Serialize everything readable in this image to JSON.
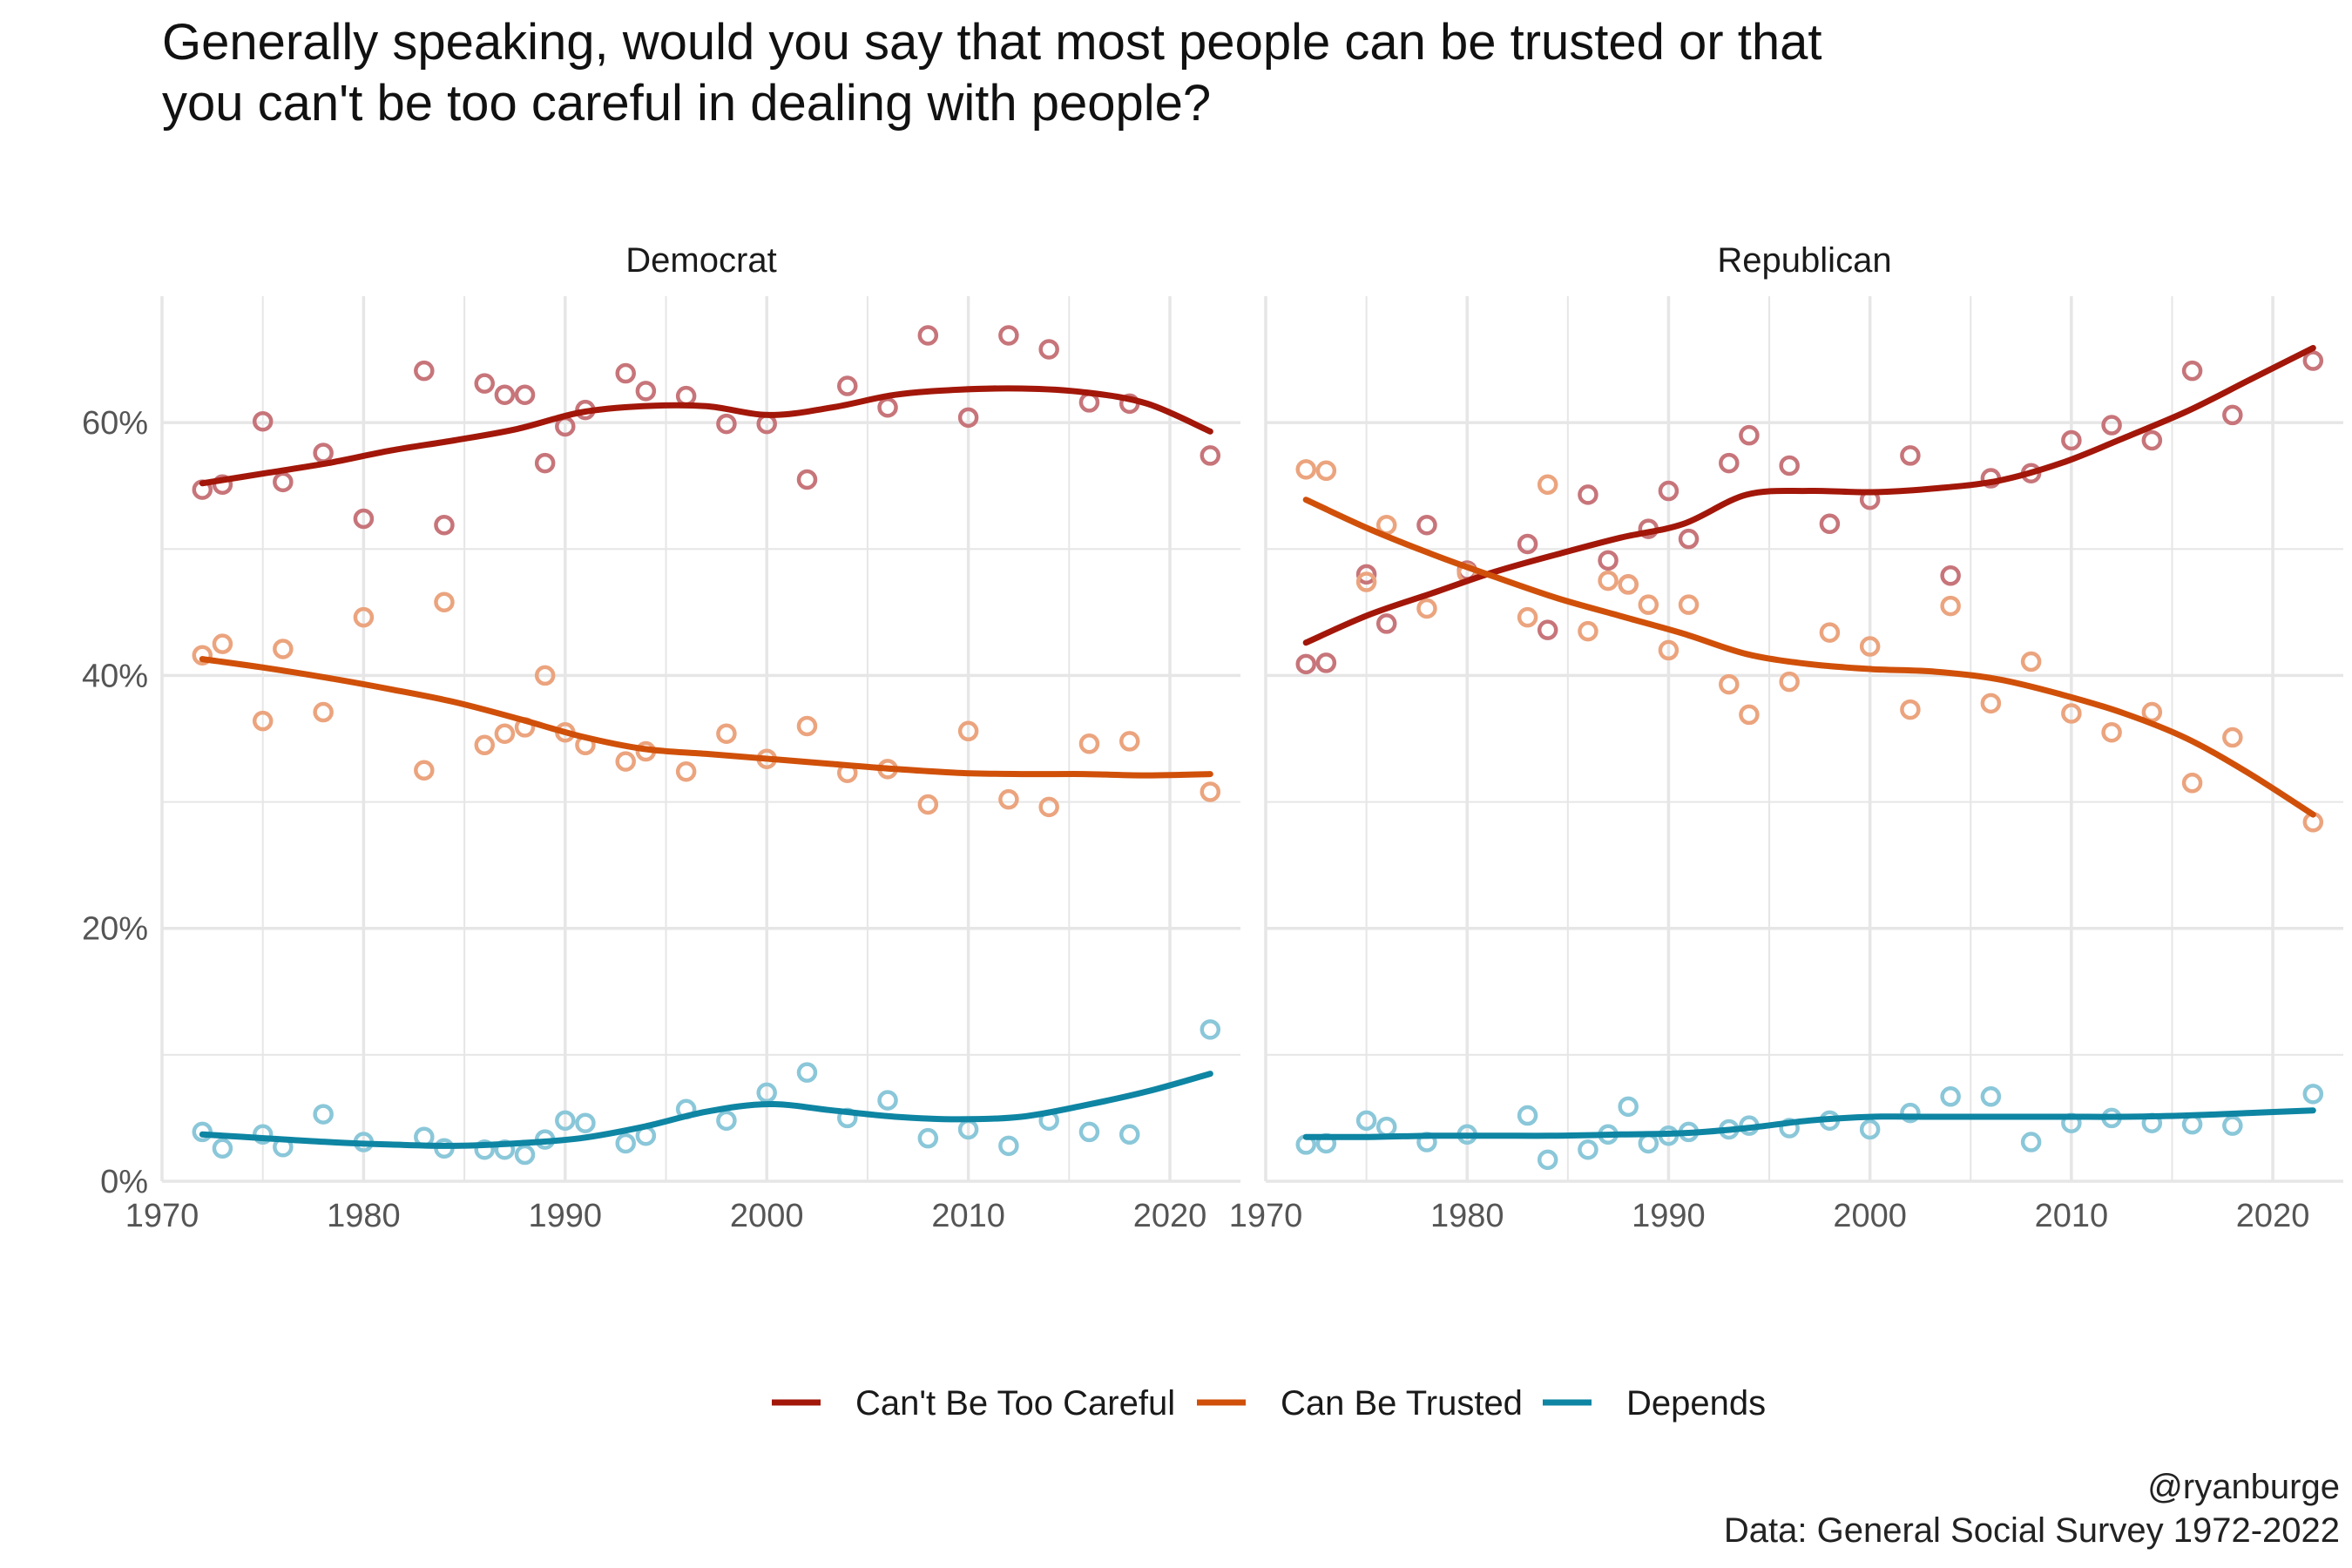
{
  "title_line1": "Generally speaking, would you say that most people can be trusted or that",
  "title_line2": "you can't be too careful in dealing with people?",
  "caption_handle": "@ryanburge",
  "caption_source": "Data: General Social Survey 1972-2022",
  "colors": {
    "cant_be_too_careful": "#a21709",
    "can_be_trusted": "#d0500a",
    "depends": "#0e85a3",
    "cant_be_too_careful_point": "#c7757a",
    "can_be_trusted_point": "#eba47e",
    "depends_point": "#8ac7d9",
    "grid": "#e6e6e6",
    "axis_text": "#555555"
  },
  "chart_data": {
    "type": "scatter",
    "title": "Generally speaking, would you say that most people can be trusted or that you can't be too careful in dealing with people?",
    "xlabel": "",
    "ylabel": "",
    "xlim": [
      1970,
      2023.5
    ],
    "ylim": [
      0,
      70
    ],
    "x_ticks": [
      1970,
      1980,
      1990,
      2000,
      2010,
      2020
    ],
    "x_tick_labels": [
      "1970",
      "1980",
      "1990",
      "2000",
      "2010",
      "2020"
    ],
    "y_ticks": [
      0,
      20,
      40,
      60
    ],
    "y_tick_labels": [
      "0%",
      "20%",
      "40%",
      "60%"
    ],
    "legend": [
      "Can't Be Too Careful",
      "Can Be Trusted",
      "Depends"
    ],
    "legend_position": "bottom",
    "smoothed_lines": true,
    "panels": [
      {
        "name": "Democrat",
        "series": [
          {
            "name": "Can't Be Too Careful",
            "x": [
              1972,
              1973,
              1975,
              1976,
              1978,
              1980,
              1983,
              1984,
              1986,
              1987,
              1988,
              1989,
              1990,
              1991,
              1993,
              1994,
              1996,
              1998,
              2000,
              2002,
              2004,
              2006,
              2008,
              2010,
              2012,
              2014,
              2016,
              2018,
              2022
            ],
            "y": [
              54.7,
              55.1,
              60.1,
              55.3,
              57.6,
              52.4,
              64.1,
              51.9,
              63.1,
              62.2,
              62.2,
              56.8,
              59.7,
              61.0,
              63.9,
              62.5,
              62.1,
              59.9,
              59.9,
              55.5,
              62.9,
              61.2,
              66.9,
              60.4,
              66.9,
              65.8,
              61.6,
              61.5,
              57.4
            ],
            "trend": [
              55.2,
              56.0,
              56.8,
              57.8,
              58.6,
              59.5,
              60.8,
              61.3,
              61.3,
              60.6,
              61.2,
              62.2,
              62.6,
              62.7,
              62.4,
              61.5,
              59.3
            ]
          },
          {
            "name": "Can Be Trusted",
            "x": [
              1972,
              1973,
              1975,
              1976,
              1978,
              1980,
              1983,
              1984,
              1986,
              1987,
              1988,
              1989,
              1990,
              1991,
              1993,
              1994,
              1996,
              1998,
              2000,
              2002,
              2004,
              2006,
              2008,
              2010,
              2012,
              2014,
              2016,
              2018,
              2022
            ],
            "y": [
              41.6,
              42.5,
              36.4,
              42.1,
              37.1,
              44.6,
              32.5,
              45.8,
              34.5,
              35.4,
              35.9,
              40.0,
              35.5,
              34.5,
              33.2,
              34.0,
              32.4,
              35.4,
              33.4,
              36.0,
              32.3,
              32.6,
              29.8,
              35.6,
              30.2,
              29.6,
              34.6,
              34.8,
              30.8
            ],
            "trend": [
              41.3,
              40.6,
              39.8,
              38.9,
              37.9,
              36.6,
              35.2,
              34.2,
              33.8,
              33.4,
              33.0,
              32.6,
              32.3,
              32.2,
              32.2,
              32.1,
              32.2
            ]
          },
          {
            "name": "Depends",
            "x": [
              1972,
              1973,
              1975,
              1976,
              1978,
              1980,
              1983,
              1984,
              1986,
              1987,
              1988,
              1989,
              1990,
              1991,
              1993,
              1994,
              1996,
              1998,
              2000,
              2002,
              2004,
              2006,
              2008,
              2010,
              2012,
              2014,
              2016,
              2018,
              2022
            ],
            "y": [
              3.9,
              2.6,
              3.7,
              2.7,
              5.3,
              3.1,
              3.5,
              2.6,
              2.5,
              2.5,
              2.1,
              3.3,
              4.8,
              4.6,
              3.0,
              3.6,
              5.7,
              4.8,
              7.0,
              8.6,
              5.0,
              6.4,
              3.4,
              4.1,
              2.8,
              4.8,
              3.9,
              3.7,
              12.0
            ],
            "trend": [
              3.7,
              3.4,
              3.1,
              2.9,
              2.8,
              3.0,
              3.4,
              4.3,
              5.5,
              6.1,
              5.6,
              5.1,
              4.9,
              5.1,
              6.0,
              7.1,
              8.5
            ]
          }
        ]
      },
      {
        "name": "Republican",
        "series": [
          {
            "name": "Can't Be Too Careful",
            "x": [
              1972,
              1973,
              1975,
              1976,
              1978,
              1980,
              1983,
              1984,
              1986,
              1987,
              1988,
              1989,
              1990,
              1991,
              1993,
              1994,
              1996,
              1998,
              2000,
              2002,
              2004,
              2006,
              2008,
              2010,
              2012,
              2014,
              2016,
              2018,
              2022
            ],
            "y": [
              40.9,
              41.0,
              48.0,
              44.1,
              51.9,
              48.3,
              50.4,
              43.6,
              54.3,
              49.1,
              47.2,
              51.6,
              54.6,
              50.8,
              56.8,
              59.0,
              56.6,
              52.0,
              53.9,
              57.4,
              47.9,
              55.6,
              56.0,
              58.6,
              59.8,
              58.6,
              64.1,
              60.6,
              64.9
            ],
            "trend": [
              42.6,
              44.8,
              46.5,
              48.2,
              49.6,
              50.9,
              52.0,
              54.3,
              54.6,
              54.5,
              54.8,
              55.4,
              56.8,
              58.8,
              60.9,
              63.4,
              65.9
            ]
          },
          {
            "name": "Can Be Trusted",
            "x": [
              1972,
              1973,
              1975,
              1976,
              1978,
              1980,
              1983,
              1984,
              1986,
              1987,
              1988,
              1989,
              1990,
              1991,
              1993,
              1994,
              1996,
              1998,
              2000,
              2002,
              2004,
              2006,
              2008,
              2010,
              2012,
              2014,
              2016,
              2018,
              2022
            ],
            "y": [
              56.3,
              56.2,
              47.4,
              51.9,
              45.3,
              48.1,
              44.6,
              55.1,
              43.5,
              47.5,
              47.2,
              45.6,
              42.0,
              45.6,
              39.3,
              36.9,
              39.5,
              43.4,
              42.3,
              37.3,
              45.5,
              37.8,
              41.1,
              37.0,
              35.5,
              37.1,
              31.5,
              35.1,
              28.4
            ],
            "trend": [
              53.9,
              51.6,
              49.6,
              47.8,
              46.1,
              44.7,
              43.3,
              41.7,
              40.9,
              40.5,
              40.3,
              39.7,
              38.5,
              37.0,
              35.0,
              32.2,
              29.0
            ]
          },
          {
            "name": "Depends",
            "x": [
              1972,
              1973,
              1975,
              1976,
              1978,
              1980,
              1983,
              1984,
              1986,
              1987,
              1988,
              1989,
              1990,
              1991,
              1993,
              1994,
              1996,
              1998,
              2000,
              2002,
              2004,
              2006,
              2008,
              2010,
              2012,
              2014,
              2016,
              2018,
              2022
            ],
            "y": [
              2.9,
              3.0,
              4.8,
              4.3,
              3.1,
              3.7,
              5.2,
              1.7,
              2.5,
              3.7,
              5.9,
              3.0,
              3.6,
              3.9,
              4.1,
              4.4,
              4.2,
              4.8,
              4.1,
              5.4,
              6.7,
              6.7,
              3.1,
              4.6,
              5.0,
              4.6,
              4.5,
              4.4,
              6.9
            ],
            "trend": [
              3.5,
              3.5,
              3.6,
              3.6,
              3.6,
              3.7,
              3.8,
              4.2,
              4.8,
              5.1,
              5.1,
              5.1,
              5.1,
              5.1,
              5.2,
              5.4,
              5.6
            ]
          }
        ]
      }
    ]
  }
}
